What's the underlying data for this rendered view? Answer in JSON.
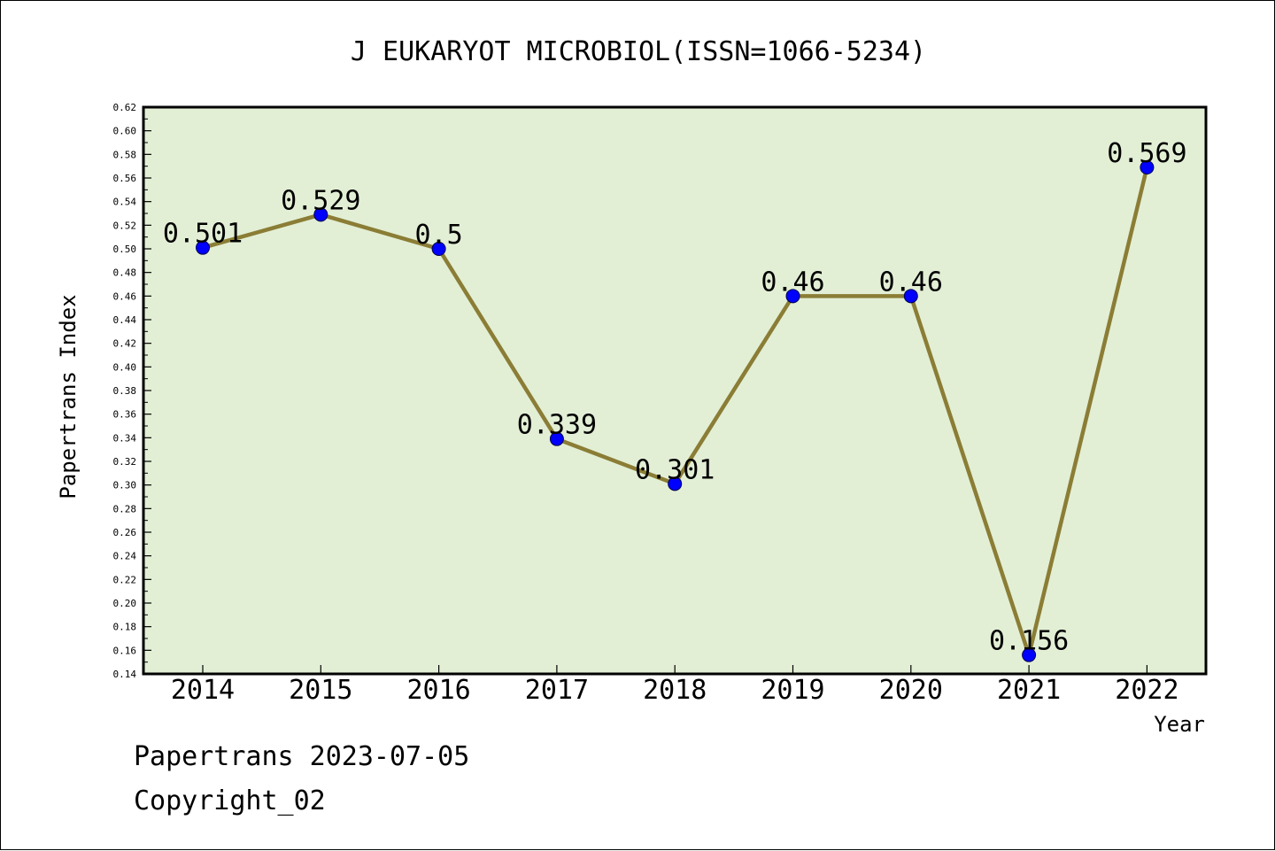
{
  "title": "J EUKARYOT MICROBIOL(ISSN=1066-5234)",
  "footer": {
    "line1": "Papertrans 2023-07-05",
    "line2": "Copyright_02"
  },
  "colors": {
    "plot_bg": "#e2efd5",
    "line": "#8b7d35",
    "marker": "#0000ff"
  },
  "chart_data": {
    "type": "line",
    "title": "J EUKARYOT MICROBIOL(ISSN=1066-5234)",
    "xlabel": "Year",
    "ylabel": "Papertrans Index",
    "categories": [
      "2014",
      "2015",
      "2016",
      "2017",
      "2018",
      "2019",
      "2020",
      "2021",
      "2022"
    ],
    "values": [
      0.501,
      0.529,
      0.5,
      0.339,
      0.301,
      0.46,
      0.46,
      0.156,
      0.569
    ],
    "data_labels": [
      "0.501",
      "0.529",
      "0.5",
      "0.339",
      "0.301",
      "0.46",
      "0.46",
      "0.156",
      "0.569"
    ],
    "ylim": [
      0.14,
      0.62
    ],
    "yticks": [
      "0.14",
      "0.16",
      "0.18",
      "0.20",
      "0.22",
      "0.24",
      "0.26",
      "0.28",
      "0.30",
      "0.32",
      "0.34",
      "0.36",
      "0.38",
      "0.40",
      "0.42",
      "0.44",
      "0.46",
      "0.48",
      "0.50",
      "0.52",
      "0.54",
      "0.56",
      "0.58",
      "0.60",
      "0.62"
    ],
    "grid": false,
    "legend": "none"
  }
}
